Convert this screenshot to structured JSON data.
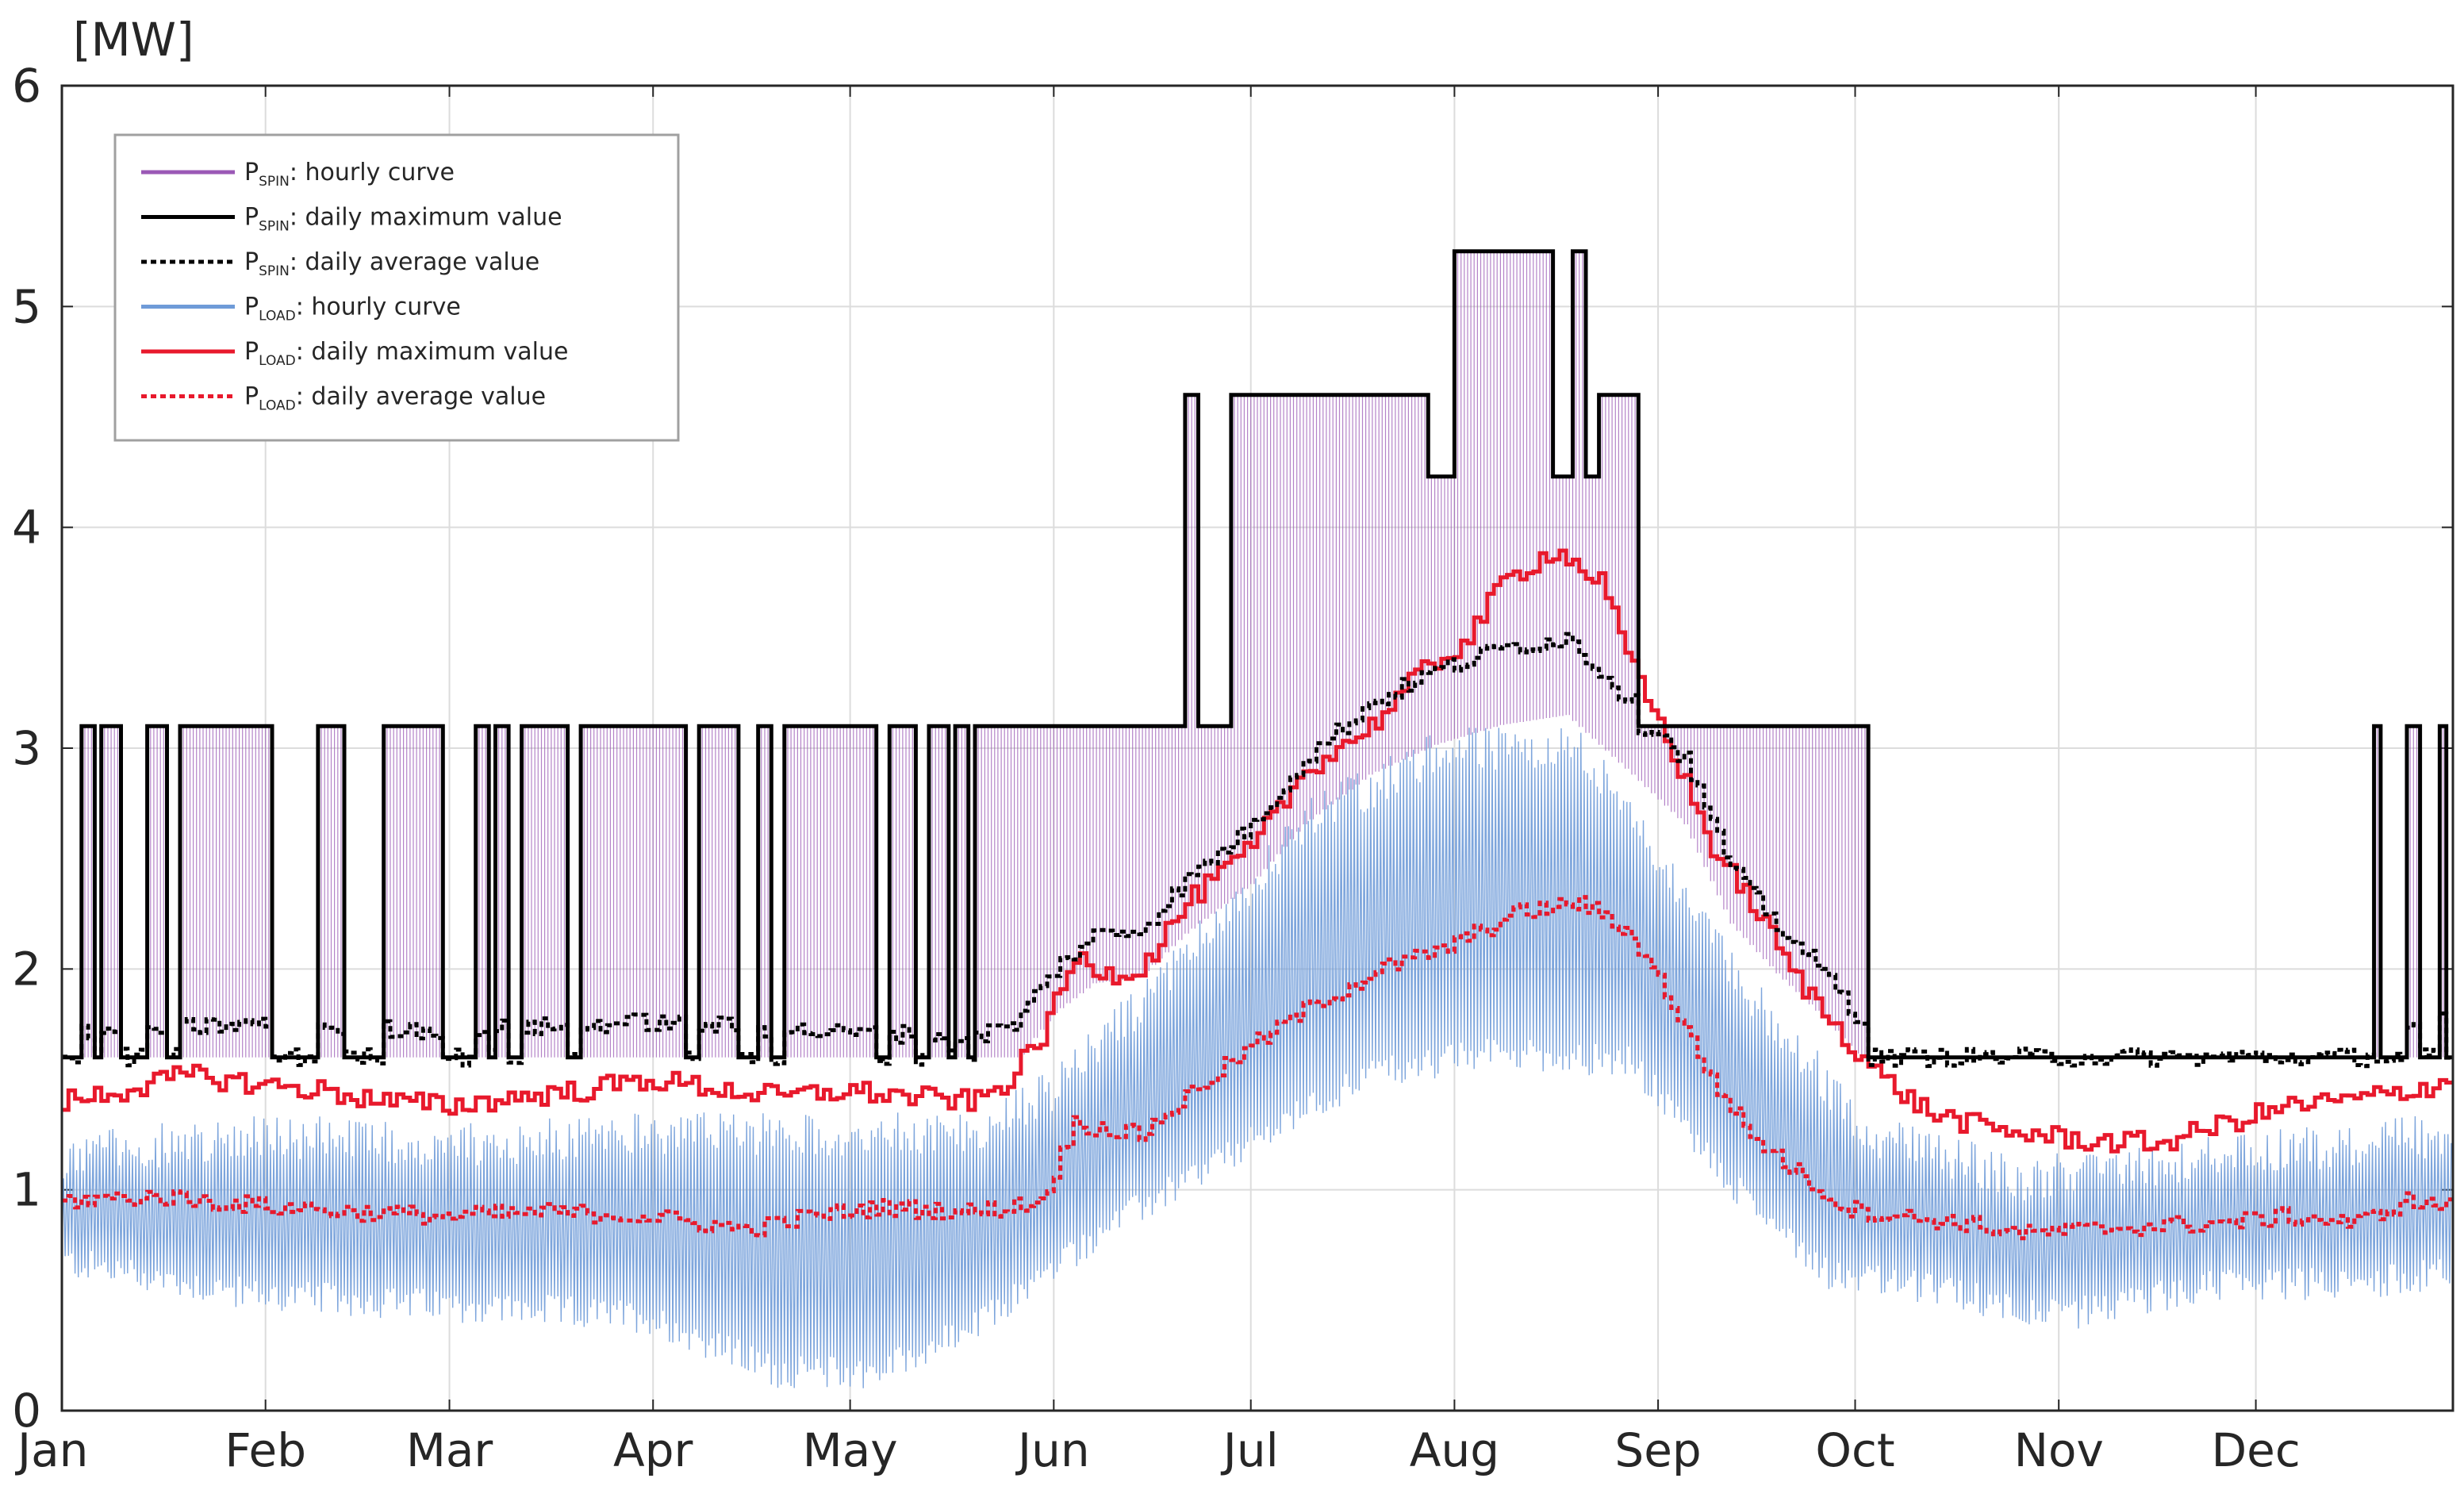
{
  "chart_data": {
    "type": "line",
    "unit_label": "[MW]",
    "ylim": [
      0,
      6
    ],
    "yticks": [
      "0",
      "1",
      "2",
      "3",
      "4",
      "5",
      "6"
    ],
    "x_unit": "day of year",
    "xlim": [
      1,
      365
    ],
    "month_labels": [
      "Jan",
      "Feb",
      "Mar",
      "Apr",
      "May",
      "Jun",
      "Jul",
      "Aug",
      "Sep",
      "Oct",
      "Nov",
      "Dec"
    ],
    "month_start_days": [
      1,
      32,
      60,
      91,
      121,
      152,
      182,
      213,
      244,
      274,
      305,
      335
    ],
    "grid": true,
    "legend_position": "top-left",
    "colors": {
      "p_spin_hourly": "#9b59b6",
      "p_spin_max": "#000000",
      "p_spin_avg": "#000000",
      "p_load_hourly": "#6f9bd8",
      "p_load_max": "#e8192c",
      "p_load_avg": "#e8192c",
      "grid": "#dcdcdc",
      "axis": "#262626"
    },
    "legend": [
      {
        "key": "p_spin_hourly",
        "main": "P",
        "sub": "SPIN",
        "text": ": hourly curve",
        "style": "solid",
        "color": "#9b59b6"
      },
      {
        "key": "p_spin_max",
        "main": "P",
        "sub": "SPIN",
        "text": ": daily maximum value",
        "style": "solid",
        "color": "#000000"
      },
      {
        "key": "p_spin_avg",
        "main": "P",
        "sub": "SPIN",
        "text": ": daily average value",
        "style": "dotted",
        "color": "#000000"
      },
      {
        "key": "p_load_hourly",
        "main": "P",
        "sub": "LOAD",
        "text": ": hourly curve",
        "style": "solid",
        "color": "#6f9bd8"
      },
      {
        "key": "p_load_max",
        "main": "P",
        "sub": "LOAD",
        "text": ": daily maximum value",
        "style": "solid",
        "color": "#e8192c"
      },
      {
        "key": "p_load_avg",
        "main": "P",
        "sub": "LOAD",
        "text": ": daily average value",
        "style": "dotted",
        "color": "#e8192c"
      }
    ],
    "series": {
      "p_spin_max_segments": [
        [
          1,
          4,
          1.6
        ],
        [
          4,
          6,
          3.1
        ],
        [
          6,
          7,
          1.6
        ],
        [
          7,
          10,
          3.1
        ],
        [
          10,
          14,
          1.6
        ],
        [
          14,
          17,
          3.1
        ],
        [
          17,
          19,
          1.6
        ],
        [
          19,
          33,
          3.1
        ],
        [
          33,
          40,
          1.6
        ],
        [
          40,
          44,
          3.1
        ],
        [
          44,
          50,
          1.6
        ],
        [
          50,
          59,
          3.1
        ],
        [
          59,
          64,
          1.6
        ],
        [
          64,
          66,
          3.1
        ],
        [
          66,
          67,
          1.6
        ],
        [
          67,
          69,
          3.1
        ],
        [
          69,
          71,
          1.6
        ],
        [
          71,
          78,
          3.1
        ],
        [
          78,
          80,
          1.6
        ],
        [
          80,
          96,
          3.1
        ],
        [
          96,
          98,
          1.6
        ],
        [
          98,
          104,
          3.1
        ],
        [
          104,
          107,
          1.6
        ],
        [
          107,
          109,
          3.1
        ],
        [
          109,
          111,
          1.6
        ],
        [
          111,
          125,
          3.1
        ],
        [
          125,
          127,
          1.6
        ],
        [
          127,
          131,
          3.1
        ],
        [
          131,
          133,
          1.6
        ],
        [
          133,
          136,
          3.1
        ],
        [
          136,
          137,
          1.6
        ],
        [
          137,
          139,
          3.1
        ],
        [
          139,
          140,
          1.6
        ],
        [
          140,
          172,
          3.1
        ],
        [
          172,
          174,
          4.6
        ],
        [
          174,
          179,
          3.1
        ],
        [
          179,
          209,
          4.6
        ],
        [
          209,
          213,
          4.23
        ],
        [
          213,
          228,
          5.25
        ],
        [
          228,
          231,
          4.23
        ],
        [
          231,
          233,
          5.25
        ],
        [
          233,
          235,
          4.23
        ],
        [
          235,
          241,
          4.6
        ],
        [
          241,
          276,
          3.1
        ],
        [
          276,
          353,
          1.6
        ],
        [
          353,
          354,
          3.1
        ],
        [
          354,
          358,
          1.6
        ],
        [
          358,
          360,
          3.1
        ],
        [
          360,
          363,
          1.6
        ],
        [
          363,
          364,
          3.1
        ],
        [
          364,
          365,
          1.6
        ]
      ],
      "p_spin_avg_anchors": [
        [
          1,
          1.71
        ],
        [
          30,
          1.75
        ],
        [
          60,
          1.72
        ],
        [
          90,
          1.76
        ],
        [
          120,
          1.71
        ],
        [
          140,
          1.7
        ],
        [
          146,
          1.75
        ],
        [
          152,
          2.0
        ],
        [
          158,
          2.15
        ],
        [
          165,
          2.18
        ],
        [
          172,
          2.4
        ],
        [
          182,
          2.65
        ],
        [
          190,
          2.95
        ],
        [
          200,
          3.2
        ],
        [
          210,
          3.35
        ],
        [
          220,
          3.45
        ],
        [
          230,
          3.5
        ],
        [
          240,
          3.2
        ],
        [
          248,
          2.95
        ],
        [
          255,
          2.45
        ],
        [
          262,
          2.2
        ],
        [
          270,
          1.95
        ],
        [
          276,
          1.72
        ],
        [
          280,
          1.6
        ],
        [
          353,
          1.6
        ],
        [
          356,
          1.7
        ],
        [
          365,
          1.78
        ]
      ],
      "p_load_max_anchors": [
        [
          1,
          1.4
        ],
        [
          10,
          1.45
        ],
        [
          20,
          1.52
        ],
        [
          30,
          1.48
        ],
        [
          40,
          1.45
        ],
        [
          50,
          1.4
        ],
        [
          60,
          1.38
        ],
        [
          70,
          1.42
        ],
        [
          80,
          1.45
        ],
        [
          90,
          1.5
        ],
        [
          100,
          1.46
        ],
        [
          110,
          1.42
        ],
        [
          120,
          1.45
        ],
        [
          130,
          1.42
        ],
        [
          140,
          1.4
        ],
        [
          145,
          1.5
        ],
        [
          150,
          1.7
        ],
        [
          155,
          2.05
        ],
        [
          160,
          1.98
        ],
        [
          165,
          2.0
        ],
        [
          172,
          2.3
        ],
        [
          182,
          2.55
        ],
        [
          190,
          2.9
        ],
        [
          200,
          3.1
        ],
        [
          208,
          3.35
        ],
        [
          215,
          3.5
        ],
        [
          220,
          3.75
        ],
        [
          228,
          3.9
        ],
        [
          235,
          3.75
        ],
        [
          240,
          3.35
        ],
        [
          245,
          3.05
        ],
        [
          252,
          2.55
        ],
        [
          258,
          2.3
        ],
        [
          265,
          1.95
        ],
        [
          272,
          1.7
        ],
        [
          278,
          1.5
        ],
        [
          285,
          1.35
        ],
        [
          295,
          1.27
        ],
        [
          310,
          1.22
        ],
        [
          320,
          1.21
        ],
        [
          330,
          1.3
        ],
        [
          340,
          1.38
        ],
        [
          350,
          1.41
        ],
        [
          358,
          1.45
        ],
        [
          365,
          1.5
        ]
      ],
      "p_load_avg_anchors": [
        [
          1,
          0.95
        ],
        [
          15,
          0.97
        ],
        [
          30,
          0.93
        ],
        [
          45,
          0.9
        ],
        [
          60,
          0.88
        ],
        [
          75,
          0.9
        ],
        [
          90,
          0.88
        ],
        [
          105,
          0.82
        ],
        [
          115,
          0.88
        ],
        [
          125,
          0.92
        ],
        [
          140,
          0.9
        ],
        [
          150,
          0.95
        ],
        [
          155,
          1.3
        ],
        [
          165,
          1.25
        ],
        [
          172,
          1.42
        ],
        [
          182,
          1.65
        ],
        [
          192,
          1.85
        ],
        [
          202,
          2.0
        ],
        [
          212,
          2.1
        ],
        [
          222,
          2.25
        ],
        [
          232,
          2.3
        ],
        [
          240,
          2.15
        ],
        [
          245,
          1.9
        ],
        [
          252,
          1.5
        ],
        [
          258,
          1.25
        ],
        [
          265,
          1.08
        ],
        [
          272,
          0.92
        ],
        [
          280,
          0.88
        ],
        [
          290,
          0.85
        ],
        [
          300,
          0.8
        ],
        [
          315,
          0.83
        ],
        [
          330,
          0.85
        ],
        [
          340,
          0.88
        ],
        [
          350,
          0.85
        ],
        [
          358,
          0.95
        ],
        [
          365,
          0.92
        ]
      ],
      "p_load_hourly_min_anchors": [
        [
          1,
          0.6
        ],
        [
          30,
          0.45
        ],
        [
          60,
          0.4
        ],
        [
          90,
          0.35
        ],
        [
          110,
          0.1
        ],
        [
          125,
          0.1
        ],
        [
          140,
          0.3
        ],
        [
          160,
          0.75
        ],
        [
          180,
          1.1
        ],
        [
          200,
          1.45
        ],
        [
          220,
          1.55
        ],
        [
          240,
          1.5
        ],
        [
          255,
          0.95
        ],
        [
          270,
          0.55
        ],
        [
          290,
          0.45
        ],
        [
          305,
          0.35
        ],
        [
          330,
          0.5
        ],
        [
          350,
          0.5
        ],
        [
          365,
          0.55
        ]
      ],
      "p_load_hourly_max_anchors": [
        [
          1,
          1.25
        ],
        [
          30,
          1.35
        ],
        [
          60,
          1.3
        ],
        [
          90,
          1.35
        ],
        [
          120,
          1.35
        ],
        [
          140,
          1.35
        ],
        [
          152,
          1.55
        ],
        [
          172,
          2.15
        ],
        [
          192,
          2.8
        ],
        [
          212,
          3.1
        ],
        [
          232,
          3.1
        ],
        [
          242,
          2.7
        ],
        [
          255,
          2.1
        ],
        [
          265,
          1.75
        ],
        [
          276,
          1.35
        ],
        [
          300,
          1.15
        ],
        [
          330,
          1.25
        ],
        [
          365,
          1.35
        ]
      ]
    }
  }
}
